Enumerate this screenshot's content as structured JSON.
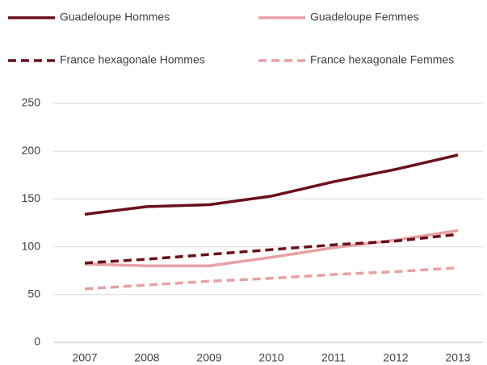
{
  "chart_data": {
    "type": "line",
    "categories": [
      "2007",
      "2008",
      "2009",
      "2010",
      "2011",
      "2012",
      "2013"
    ],
    "series": [
      {
        "name": "Guadeloupe Hommes",
        "color": "#6b0f1a",
        "dashed": false,
        "values": [
          134,
          142,
          144,
          153,
          168,
          181,
          196
        ]
      },
      {
        "name": "Guadeloupe Femmes",
        "color": "#e8a0a4",
        "dashed": false,
        "values": [
          82,
          80,
          80,
          89,
          99,
          107,
          117
        ]
      },
      {
        "name": "France hexagonale Hommes",
        "color": "#6b0f1a",
        "dashed": true,
        "values": [
          83,
          87,
          92,
          97,
          102,
          106,
          113
        ]
      },
      {
        "name": "France hexagonale Femmes",
        "color": "#e8a0a4",
        "dashed": true,
        "values": [
          56,
          60,
          64,
          67,
          71,
          74,
          78
        ]
      }
    ],
    "ylim": [
      0,
      250
    ],
    "yticks": [
      0,
      50,
      100,
      150,
      200,
      250
    ],
    "grid": true
  }
}
